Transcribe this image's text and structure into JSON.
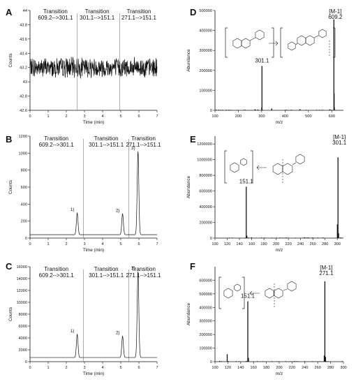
{
  "chart_data": [
    {
      "id": "A",
      "type": "line",
      "panel_label": "A",
      "xlabel": "Time (min)",
      "ylabel": "Counts",
      "xlim": [
        0,
        7
      ],
      "ylim": [
        42.6,
        44.0
      ],
      "xticks": [
        0,
        1,
        2,
        3,
        4,
        5,
        6,
        7
      ],
      "yticks": [
        42.6,
        42.8,
        43.0,
        43.2,
        43.4,
        43.6,
        43.8,
        44.0
      ],
      "baseline": 43.2,
      "noise": 0.12,
      "separators": [
        2.6,
        4.95
      ],
      "transitions": [
        {
          "line1": "Transition",
          "line2": "609.2-->301.1",
          "x": 1.4
        },
        {
          "line1": "Transition",
          "line2": "301.1-->151.1",
          "x": 3.7
        },
        {
          "line1": "Transition",
          "line2": "271.1-->151.1",
          "x": 6.0
        }
      ],
      "peaks": []
    },
    {
      "id": "B",
      "type": "line",
      "panel_label": "B",
      "xlabel": "Time (min)",
      "ylabel": "Counts",
      "xlim": [
        0,
        7
      ],
      "ylim": [
        0,
        1200
      ],
      "xticks": [
        0,
        1,
        2,
        3,
        4,
        5,
        6,
        7
      ],
      "yticks": [
        0,
        200,
        400,
        600,
        800,
        1000,
        1200
      ],
      "baseline": 40,
      "noise": 0,
      "separators": [
        2.95,
        5.45
      ],
      "transitions": [
        {
          "line1": "Transition",
          "line2": "609.2-->301.1",
          "x": 1.45
        },
        {
          "line1": "Transition",
          "line2": "301.1-->151.1",
          "x": 4.2
        },
        {
          "line1": "Transition",
          "line2": "271.1-->151.1",
          "x": 6.25
        }
      ],
      "peaks": [
        {
          "label": "1)",
          "x": 2.6,
          "y": 295
        },
        {
          "label": "2)",
          "x": 5.1,
          "y": 285
        },
        {
          "label": "3)",
          "x": 5.95,
          "y": 1020
        }
      ]
    },
    {
      "id": "C",
      "type": "line",
      "panel_label": "C",
      "xlabel": "Time (min)",
      "ylabel": "Counts",
      "xlim": [
        0,
        7
      ],
      "ylim": [
        0,
        16000
      ],
      "xticks": [
        0,
        1,
        2,
        3,
        4,
        5,
        6,
        7
      ],
      "yticks": [
        0,
        2000,
        4000,
        6000,
        8000,
        10000,
        12000,
        14000,
        16000
      ],
      "baseline": 700,
      "noise": 0,
      "separators": [
        2.95,
        5.45
      ],
      "transitions": [
        {
          "line1": "Transition",
          "line2": "609.2-->301.1",
          "x": 1.45
        },
        {
          "line1": "Transition",
          "line2": "301.1-->151.1",
          "x": 4.2
        },
        {
          "line1": "Transition",
          "line2": "271.1-->151.1",
          "x": 6.25
        }
      ],
      "peaks": [
        {
          "label": "1)",
          "x": 2.6,
          "y": 4600
        },
        {
          "label": "2)",
          "x": 5.1,
          "y": 4300
        },
        {
          "label": "3)",
          "x": 5.95,
          "y": 15200
        }
      ]
    },
    {
      "id": "D",
      "type": "bar",
      "panel_label": "D",
      "xlabel": "m/z",
      "ylabel": "Abundance",
      "xlim": [
        100,
        650
      ],
      "ylim": [
        0,
        500000
      ],
      "xticks": [
        100,
        200,
        300,
        400,
        500,
        600
      ],
      "yticks": [
        0,
        100000,
        200000,
        300000,
        400000,
        500000
      ],
      "ion_label": {
        "top": "[M-1]",
        "bottom": "609.2",
        "x": 609.2
      },
      "peak_labels": [
        {
          "text": "301.1",
          "x": 301.1,
          "y": 222000
        }
      ],
      "peaks": [
        {
          "x": 271,
          "y": 5000
        },
        {
          "x": 300.1,
          "y": 14000
        },
        {
          "x": 301.1,
          "y": 222000
        },
        {
          "x": 343,
          "y": 9000
        },
        {
          "x": 463,
          "y": 4000
        },
        {
          "x": 464,
          "y": 5500
        },
        {
          "x": 591,
          "y": 5000
        },
        {
          "x": 609.2,
          "y": 455000
        },
        {
          "x": 610.2,
          "y": 85000
        },
        {
          "x": 611.2,
          "y": 15000
        }
      ]
    },
    {
      "id": "E",
      "type": "bar",
      "panel_label": "E",
      "xlabel": "m/z",
      "ylabel": "Abundance",
      "xlim": [
        100,
        310
      ],
      "ylim": [
        0,
        1300000
      ],
      "xticks": [
        100,
        120,
        140,
        160,
        180,
        200,
        220,
        240,
        260,
        280,
        300
      ],
      "yticks": [
        0,
        200000,
        400000,
        600000,
        800000,
        1000000,
        1200000
      ],
      "ion_label": {
        "top": "[M-1]",
        "bottom": "301.1",
        "x": 301.1
      },
      "peak_labels": [
        {
          "text": "151.1",
          "x": 151.1,
          "y": 655000
        }
      ],
      "peaks": [
        {
          "x": 151.1,
          "y": 655000
        },
        {
          "x": 152.1,
          "y": 30000
        },
        {
          "x": 300.1,
          "y": 175000
        },
        {
          "x": 301.1,
          "y": 1030000
        },
        {
          "x": 302.1,
          "y": 60000
        }
      ]
    },
    {
      "id": "F",
      "type": "bar",
      "panel_label": "F",
      "xlabel": "m/z",
      "ylabel": "Abundance",
      "xlim": [
        100,
        300
      ],
      "ylim": [
        0,
        700000
      ],
      "xticks": [
        100,
        120,
        140,
        160,
        180,
        200,
        220,
        240,
        260,
        280,
        300
      ],
      "yticks": [
        0,
        100000,
        200000,
        300000,
        400000,
        500000,
        600000
      ],
      "ion_label": {
        "top": "[M-1]",
        "bottom": "271.1",
        "x": 271.1
      },
      "peak_labels": [
        {
          "text": "151.1",
          "x": 151.1,
          "y": 445000
        }
      ],
      "peaks": [
        {
          "x": 119,
          "y": 55000
        },
        {
          "x": 151.1,
          "y": 445000
        },
        {
          "x": 152.1,
          "y": 28000
        },
        {
          "x": 270.1,
          "y": 45000
        },
        {
          "x": 271.1,
          "y": 592000
        },
        {
          "x": 272.1,
          "y": 35000
        }
      ]
    }
  ]
}
